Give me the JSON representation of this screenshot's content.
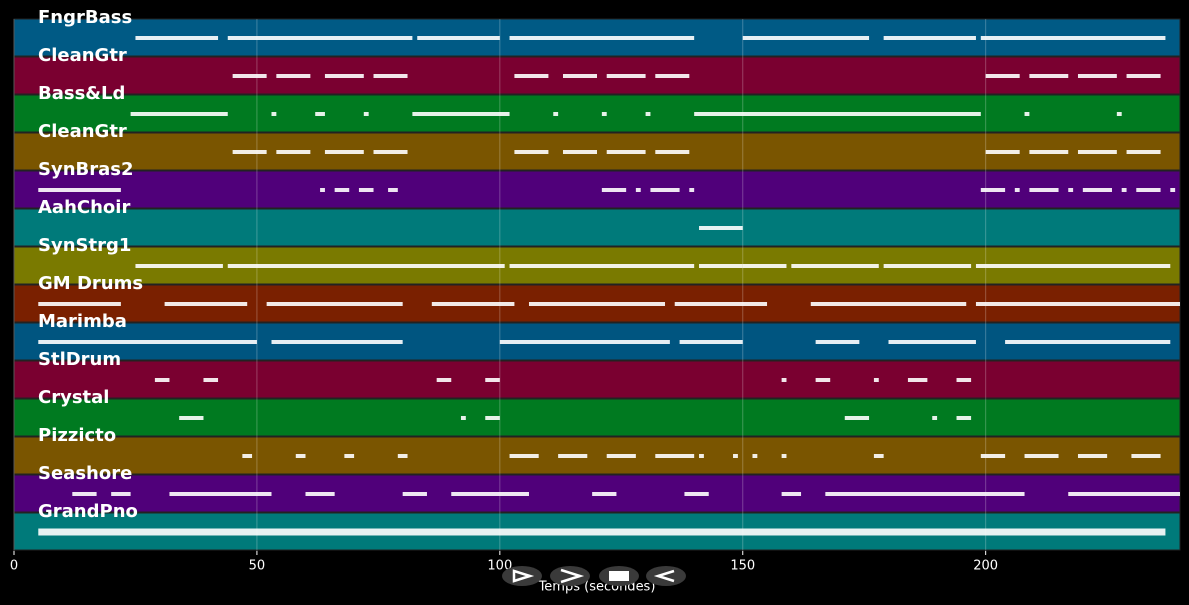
{
  "chart_data": {
    "type": "piano-roll",
    "xlabel": "Temps (secondes)",
    "xlim": [
      0,
      240
    ],
    "xticks": [
      0,
      50,
      100,
      150,
      200
    ],
    "grid": true,
    "tracks": [
      {
        "name": "FngrBass",
        "color": "#005a85",
        "segments": [
          [
            25,
            42
          ],
          [
            44,
            82
          ],
          [
            83,
            100
          ],
          [
            102,
            140
          ],
          [
            150,
            176
          ],
          [
            179,
            198
          ],
          [
            199,
            237
          ]
        ]
      },
      {
        "name": "CleanGtr",
        "color": "#7a0030",
        "segments": [
          [
            45,
            52
          ],
          [
            54,
            61
          ],
          [
            64,
            72
          ],
          [
            74,
            81
          ],
          [
            103,
            110
          ],
          [
            113,
            120
          ],
          [
            122,
            130
          ],
          [
            132,
            139
          ],
          [
            200,
            207
          ],
          [
            209,
            217
          ],
          [
            219,
            227
          ],
          [
            229,
            236
          ]
        ]
      },
      {
        "name": "Bass&Ld",
        "color": "#007a20",
        "segments": [
          [
            24,
            44
          ],
          [
            53,
            54
          ],
          [
            62,
            64
          ],
          [
            72,
            73
          ],
          [
            82,
            102
          ],
          [
            111,
            112
          ],
          [
            121,
            122
          ],
          [
            130,
            131
          ],
          [
            140,
            199
          ],
          [
            208,
            209
          ],
          [
            227,
            228
          ]
        ]
      },
      {
        "name": "CleanGtr",
        "color": "#7a5500",
        "segments": [
          [
            45,
            52
          ],
          [
            54,
            61
          ],
          [
            64,
            72
          ],
          [
            74,
            81
          ],
          [
            103,
            110
          ],
          [
            113,
            120
          ],
          [
            122,
            130
          ],
          [
            132,
            139
          ],
          [
            200,
            207
          ],
          [
            209,
            217
          ],
          [
            219,
            227
          ],
          [
            229,
            236
          ]
        ]
      },
      {
        "name": "SynBras2",
        "color": "#50007a",
        "segments": [
          [
            5,
            22
          ],
          [
            63,
            64
          ],
          [
            66,
            69
          ],
          [
            71,
            74
          ],
          [
            77,
            79
          ],
          [
            121,
            126
          ],
          [
            128,
            129
          ],
          [
            131,
            137
          ],
          [
            139,
            140
          ],
          [
            199,
            204
          ],
          [
            206,
            207
          ],
          [
            209,
            215
          ],
          [
            217,
            218
          ],
          [
            220,
            226
          ],
          [
            228,
            229
          ],
          [
            231,
            236
          ],
          [
            238,
            239
          ]
        ]
      },
      {
        "name": "AahChoir",
        "color": "#007a7a",
        "segments": [
          [
            141,
            150
          ]
        ]
      },
      {
        "name": "SynStrg1",
        "color": "#7a7a00",
        "segments": [
          [
            25,
            43
          ],
          [
            44,
            101
          ],
          [
            102,
            140
          ],
          [
            141,
            150
          ],
          [
            150,
            159
          ],
          [
            160,
            178
          ],
          [
            179,
            197
          ],
          [
            198,
            238
          ]
        ]
      },
      {
        "name": "GM Drums",
        "color": "#7a2000",
        "segments": [
          [
            5,
            22
          ],
          [
            31,
            48
          ],
          [
            52,
            80
          ],
          [
            86,
            103
          ],
          [
            106,
            134
          ],
          [
            136,
            155
          ],
          [
            164,
            196
          ],
          [
            198,
            240
          ]
        ]
      },
      {
        "name": "Marimba",
        "color": "#005580",
        "segments": [
          [
            5,
            50
          ],
          [
            53,
            80
          ],
          [
            100,
            135
          ],
          [
            137,
            150
          ],
          [
            165,
            174
          ],
          [
            180,
            198
          ],
          [
            204,
            238
          ]
        ]
      },
      {
        "name": "StlDrum",
        "color": "#7a0030",
        "segments": [
          [
            29,
            32
          ],
          [
            39,
            42
          ],
          [
            87,
            90
          ],
          [
            97,
            100
          ],
          [
            158,
            159
          ],
          [
            165,
            168
          ],
          [
            177,
            178
          ],
          [
            184,
            188
          ],
          [
            194,
            197
          ]
        ]
      },
      {
        "name": "Crystal",
        "color": "#007a20",
        "segments": [
          [
            34,
            39
          ],
          [
            92,
            93
          ],
          [
            97,
            100
          ],
          [
            171,
            176
          ],
          [
            189,
            190
          ],
          [
            194,
            197
          ]
        ]
      },
      {
        "name": "Pizzicto",
        "color": "#7a5500",
        "segments": [
          [
            47,
            49
          ],
          [
            58,
            60
          ],
          [
            68,
            70
          ],
          [
            79,
            81
          ],
          [
            102,
            108
          ],
          [
            112,
            118
          ],
          [
            122,
            128
          ],
          [
            132,
            140
          ],
          [
            141,
            142
          ],
          [
            148,
            149
          ],
          [
            152,
            153
          ],
          [
            158,
            159
          ],
          [
            177,
            179
          ],
          [
            199,
            204
          ],
          [
            208,
            215
          ],
          [
            219,
            225
          ],
          [
            230,
            236
          ]
        ]
      },
      {
        "name": "Seashore",
        "color": "#50007a",
        "segments": [
          [
            12,
            17
          ],
          [
            20,
            24
          ],
          [
            32,
            53
          ],
          [
            60,
            66
          ],
          [
            80,
            85
          ],
          [
            90,
            106
          ],
          [
            119,
            124
          ],
          [
            138,
            143
          ],
          [
            158,
            162
          ],
          [
            167,
            208
          ],
          [
            217,
            240
          ]
        ]
      },
      {
        "name": "GrandPno",
        "color": "#007a7a",
        "segments": [
          [
            5,
            237
          ]
        ]
      }
    ]
  }
}
